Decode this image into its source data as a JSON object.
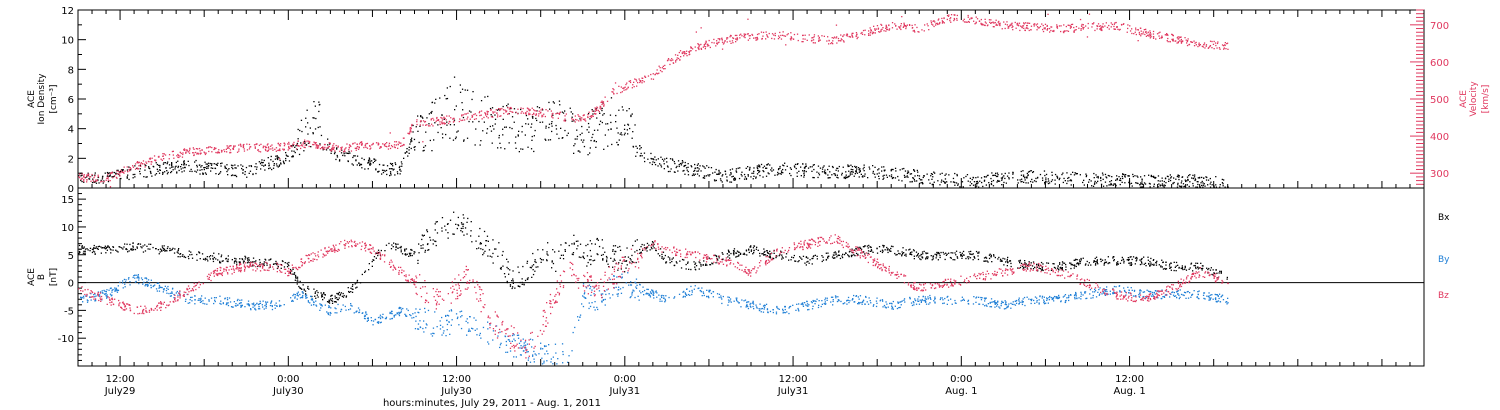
{
  "colors": {
    "density": "#000000",
    "velocity": "#e0385f",
    "bx": "#000000",
    "by": "#1f7fd6",
    "bz": "#e0385f"
  },
  "x_axis": {
    "xlabel": "hours:minutes, July 29, 2011 - Aug. 1, 2011",
    "range_hours": [
      0,
      96
    ],
    "data_end_hours": 82,
    "ticks": [
      {
        "hour": 3,
        "time": "12:00",
        "date": "July29"
      },
      {
        "hour": 15,
        "time": "0:00",
        "date": "July30"
      },
      {
        "hour": 27,
        "time": "12:00",
        "date": "July30"
      },
      {
        "hour": 39,
        "time": "0:00",
        "date": "July31"
      },
      {
        "hour": 51,
        "time": "12:00",
        "date": "July31"
      },
      {
        "hour": 63,
        "time": "0:00",
        "date": "Aug. 1"
      },
      {
        "hour": 75,
        "time": "12:00",
        "date": "Aug. 1"
      }
    ]
  },
  "chart_data": [
    {
      "type": "scatter",
      "panel": "top",
      "ylabel_lines": [
        "ACE",
        "Ion Density",
        "[cm⁻³]"
      ],
      "ylim": [
        0,
        12
      ],
      "yticks": [
        0,
        2,
        4,
        6,
        8,
        10,
        12
      ],
      "y2label_lines": [
        "ACE",
        "Velocity",
        "[km/s]"
      ],
      "y2lim": [
        260,
        740
      ],
      "y2ticks": [
        300,
        400,
        500,
        600,
        700
      ],
      "series": [
        {
          "name": "",
          "color_key": "density",
          "axis": "left",
          "x": [
            0,
            2,
            4,
            6,
            8,
            10,
            12,
            14,
            15,
            16,
            17,
            18,
            19,
            20,
            21,
            22,
            23,
            24,
            25,
            26,
            27,
            28,
            29,
            30,
            31,
            32,
            33,
            34,
            35,
            36,
            37,
            38,
            39,
            40,
            41,
            42,
            44,
            46,
            48,
            50,
            52,
            54,
            56,
            58,
            60,
            62,
            64,
            66,
            68,
            70,
            72,
            74,
            76,
            78,
            80,
            82
          ],
          "y": [
            0.9,
            0.7,
            1.1,
            1.4,
            1.5,
            1.3,
            1.2,
            1.8,
            2.2,
            3.5,
            4.5,
            2.5,
            2.2,
            1.8,
            1.6,
            1.2,
            1.4,
            3.5,
            4.0,
            5.2,
            5.5,
            5.0,
            4.5,
            4.4,
            4.0,
            3.8,
            4.2,
            4.5,
            4.0,
            3.5,
            4.0,
            4.5,
            4.8,
            2.5,
            1.8,
            1.6,
            1.3,
            0.8,
            1.1,
            1.4,
            1.2,
            1.1,
            1.2,
            1.0,
            0.8,
            0.6,
            0.5,
            0.7,
            0.8,
            0.7,
            0.6,
            0.6,
            0.5,
            0.5,
            0.5,
            0.3
          ]
        },
        {
          "name": "",
          "color_key": "velocity",
          "axis": "right",
          "x": [
            0,
            2,
            4,
            6,
            8,
            10,
            12,
            14,
            15,
            16,
            17,
            18,
            19,
            20,
            21,
            22,
            23,
            24,
            25,
            26,
            27,
            28,
            29,
            30,
            31,
            32,
            33,
            34,
            35,
            36,
            37,
            38,
            39,
            40,
            41,
            42,
            44,
            46,
            48,
            50,
            52,
            54,
            56,
            58,
            60,
            62,
            64,
            66,
            68,
            70,
            72,
            74,
            76,
            78,
            80,
            82
          ],
          "y": [
            290,
            287,
            320,
            345,
            360,
            365,
            370,
            370,
            375,
            380,
            378,
            372,
            370,
            375,
            378,
            378,
            375,
            440,
            438,
            445,
            445,
            455,
            460,
            465,
            470,
            470,
            465,
            460,
            450,
            450,
            470,
            520,
            535,
            550,
            565,
            600,
            640,
            660,
            670,
            675,
            665,
            660,
            680,
            700,
            690,
            720,
            715,
            700,
            695,
            690,
            695,
            700,
            680,
            665,
            650,
            645
          ]
        }
      ]
    },
    {
      "type": "scatter",
      "panel": "bottom",
      "ylabel_lines": [
        "ACE",
        "B",
        "[nT]"
      ],
      "ylim": [
        -15,
        17
      ],
      "yticks": [
        -10,
        -5,
        0,
        5,
        10,
        15
      ],
      "zero_line": true,
      "legend": [
        "Bx",
        "By",
        "Bz"
      ],
      "series": [
        {
          "name": "Bx",
          "color_key": "bx",
          "x": [
            0,
            2,
            4,
            6,
            8,
            10,
            12,
            14,
            15,
            16,
            17,
            18,
            19,
            20,
            21,
            22,
            23,
            24,
            25,
            26,
            27,
            28,
            29,
            30,
            31,
            32,
            33,
            34,
            35,
            36,
            37,
            38,
            39,
            40,
            41,
            42,
            44,
            46,
            48,
            50,
            52,
            54,
            56,
            58,
            60,
            62,
            64,
            66,
            68,
            70,
            72,
            74,
            76,
            78,
            80,
            82
          ],
          "y": [
            6,
            6,
            6.5,
            6,
            5,
            4.5,
            4,
            3.5,
            3,
            -1,
            -2,
            -3,
            -2,
            0,
            4,
            7,
            6,
            5,
            8,
            10,
            11,
            9,
            7,
            5,
            0,
            2,
            6,
            4,
            8,
            5,
            6,
            5,
            4,
            6,
            7,
            4,
            3,
            5,
            6,
            5,
            4,
            5,
            6,
            6,
            5,
            5,
            5,
            4,
            3,
            3,
            4,
            4,
            4,
            3,
            3,
            1
          ]
        },
        {
          "name": "By",
          "color_key": "by",
          "x": [
            0,
            2,
            4,
            6,
            8,
            10,
            12,
            14,
            15,
            16,
            17,
            18,
            19,
            20,
            21,
            22,
            23,
            24,
            25,
            26,
            27,
            28,
            29,
            30,
            31,
            32,
            33,
            34,
            35,
            36,
            37,
            38,
            39,
            40,
            41,
            42,
            44,
            46,
            48,
            50,
            52,
            54,
            56,
            58,
            60,
            62,
            64,
            66,
            68,
            70,
            72,
            74,
            76,
            78,
            80,
            82
          ],
          "y": [
            -3,
            -2,
            1,
            -1,
            -3,
            -3,
            -4,
            -4,
            -3,
            -2,
            -4,
            -5,
            -4,
            -5,
            -7,
            -6,
            -5,
            -6,
            -7,
            -8,
            -6,
            -8,
            -9,
            -10,
            -11,
            -12,
            -13,
            -13,
            -12,
            -2,
            -3,
            -1,
            0,
            -1,
            -2,
            -3,
            -1,
            -3,
            -4,
            -5,
            -4,
            -3,
            -3,
            -4,
            -3,
            -3,
            -3,
            -4,
            -3,
            -3,
            -2,
            -1,
            -2,
            -2,
            -2,
            -3
          ]
        },
        {
          "name": "Bz",
          "color_key": "bz",
          "x": [
            0,
            2,
            4,
            6,
            8,
            10,
            12,
            14,
            15,
            16,
            17,
            18,
            19,
            20,
            21,
            22,
            23,
            24,
            25,
            26,
            27,
            28,
            29,
            30,
            31,
            32,
            33,
            34,
            35,
            36,
            37,
            38,
            39,
            40,
            41,
            42,
            44,
            46,
            48,
            50,
            52,
            54,
            56,
            58,
            60,
            62,
            64,
            66,
            68,
            70,
            72,
            74,
            76,
            78,
            80,
            82
          ],
          "y": [
            -1,
            -3,
            -5,
            -4,
            -1,
            2,
            3,
            3,
            2,
            4,
            5,
            6,
            7,
            7,
            6,
            4,
            2,
            0,
            -2,
            -3,
            -1,
            2,
            -5,
            -8,
            -10,
            -12,
            -8,
            -2,
            2,
            0,
            -1,
            1,
            3,
            5,
            7,
            6,
            5,
            4,
            2,
            6,
            7,
            8,
            5,
            2,
            -1,
            0,
            1,
            2,
            3,
            2,
            0,
            -2,
            -3,
            -1,
            2,
            0
          ]
        }
      ]
    }
  ]
}
